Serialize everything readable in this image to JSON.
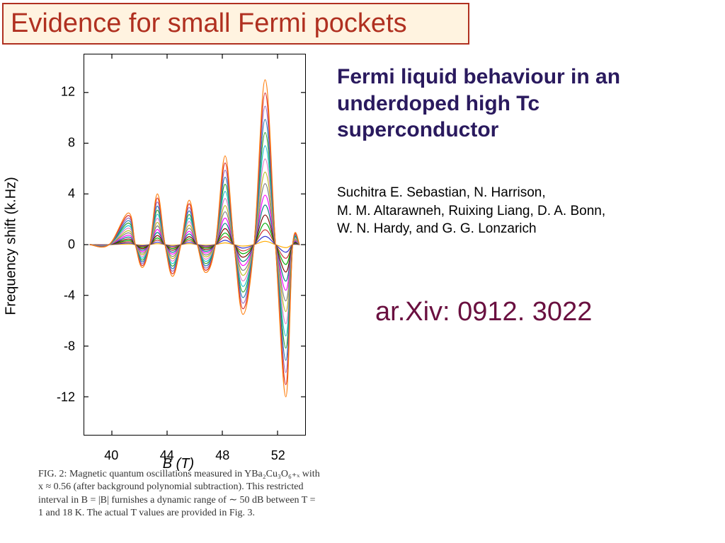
{
  "title": "Evidence for small Fermi pockets",
  "subtitle": "Fermi liquid behaviour in an underdoped high Tc superconductor",
  "authors_line1": "Suchitra E. Sebastian, N. Harrison,",
  "authors_line2": "M. M. Altarawneh, Ruixing Liang, D. A. Bonn,",
  "authors_line3": "W. N. Hardy, and G. G. Lonzarich",
  "arxiv": "ar.Xiv: 0912. 3022",
  "caption": "FIG. 2:   Magnetic quantum oscillations measured in YBa₂Cu₃O₆₊ₓ with x ≈ 0.56 (after background polynomial subtraction). This restricted interval in B = |B| furnishes a dynamic range of ∼ 50 dB between T = 1 and 18 K. The actual T values are provided in Fig. 3.",
  "chart": {
    "type": "line",
    "ylabel": "Frequency shift (k.Hz)",
    "xlabel": "B (T)",
    "xlim": [
      38,
      54
    ],
    "ylim": [
      -15,
      15
    ],
    "xticks": [
      40,
      44,
      48,
      52
    ],
    "yticks": [
      -12,
      -8,
      -4,
      0,
      4,
      8,
      12
    ],
    "background_color": "#ffffff",
    "axis_color": "#000000",
    "title_fontsize": 20,
    "tick_fontsize": 18,
    "line_width": 1.2,
    "series_colors": [
      "#ff7f0e",
      "#d62728",
      "#9467bd",
      "#1f77b4",
      "#2ca02c",
      "#17becf",
      "#e377c2",
      "#bcbd22",
      "#7f7f7f",
      "#ff00ff",
      "#008080",
      "#800000",
      "#00aa00",
      "#cc3333",
      "#3333cc",
      "#ffaa00"
    ],
    "envelope_peaks_x": [
      41.2,
      43.3,
      45.6,
      48.2,
      51.1
    ],
    "envelope_peaks_y": [
      2.5,
      4.0,
      3.5,
      7.0,
      13.0
    ],
    "envelope_troughs_x": [
      42.2,
      44.4,
      46.8,
      49.5,
      52.6
    ],
    "envelope_troughs_y": [
      -1.8,
      -2.5,
      -2.2,
      -5.5,
      -12.0
    ],
    "n_series": 16,
    "amplitude_scales": [
      1.0,
      0.92,
      0.84,
      0.76,
      0.68,
      0.6,
      0.52,
      0.44,
      0.37,
      0.3,
      0.24,
      0.18,
      0.13,
      0.09,
      0.05,
      0.02
    ]
  }
}
